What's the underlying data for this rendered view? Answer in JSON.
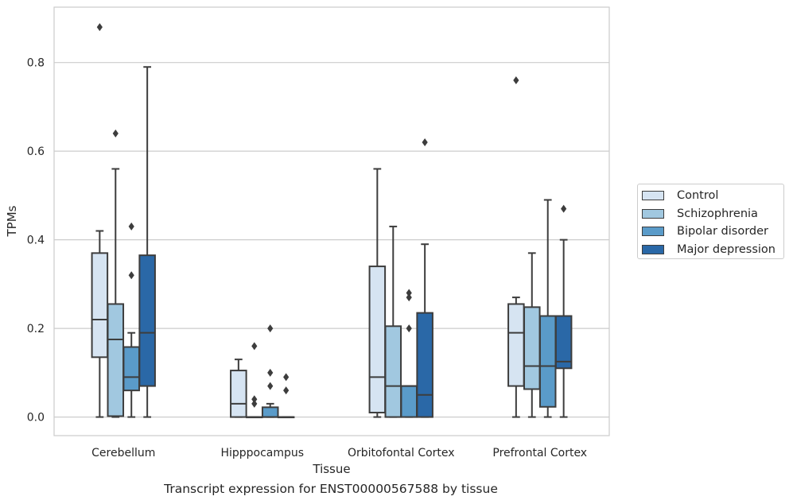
{
  "chart_data": {
    "type": "box",
    "xlabel": "Tissue",
    "ylabel": "TPMs",
    "caption": "Transcript expression for ENST00000567588 by tissue",
    "ylim": [
      -0.042,
      0.925
    ],
    "yticks": [
      "0.0",
      "0.2",
      "0.4",
      "0.6",
      "0.8"
    ],
    "ytick_values": [
      0.0,
      0.2,
      0.4,
      0.6,
      0.8
    ],
    "grid": "horizontal",
    "legend_position": "right",
    "categories": [
      "Cerebellum",
      "Hipppocampus",
      "Orbitofontal Cortex",
      "Prefrontal Cortex"
    ],
    "series": [
      {
        "name": "Control",
        "color": "#d6e4f2",
        "boxes": [
          {
            "whislo": 0.0,
            "q1": 0.135,
            "med": 0.22,
            "q3": 0.37,
            "whishi": 0.42,
            "fliers": [
              0.88
            ]
          },
          {
            "whislo": 0.0,
            "q1": 0.0,
            "med": 0.03,
            "q3": 0.105,
            "whishi": 0.13,
            "fliers": []
          },
          {
            "whislo": 0.0,
            "q1": 0.01,
            "med": 0.09,
            "q3": 0.34,
            "whishi": 0.56,
            "fliers": []
          },
          {
            "whislo": 0.0,
            "q1": 0.07,
            "med": 0.19,
            "q3": 0.255,
            "whishi": 0.27,
            "fliers": [
              0.76
            ]
          }
        ]
      },
      {
        "name": "Schizophrenia",
        "color": "#a1c8e0",
        "boxes": [
          {
            "whislo": 0.0,
            "q1": 0.002,
            "med": 0.175,
            "q3": 0.255,
            "whishi": 0.56,
            "fliers": [
              0.64
            ]
          },
          {
            "whislo": 0.0,
            "q1": 0.0,
            "med": 0.0,
            "q3": 0.0,
            "whishi": 0.0,
            "fliers": [
              0.16,
              0.04,
              0.03
            ]
          },
          {
            "whislo": 0.0,
            "q1": 0.0,
            "med": 0.07,
            "q3": 0.205,
            "whishi": 0.43,
            "fliers": []
          },
          {
            "whislo": 0.0,
            "q1": 0.063,
            "med": 0.115,
            "q3": 0.248,
            "whishi": 0.37,
            "fliers": []
          }
        ]
      },
      {
        "name": "Bipolar disorder",
        "color": "#5a9bc9",
        "boxes": [
          {
            "whislo": 0.0,
            "q1": 0.06,
            "med": 0.09,
            "q3": 0.158,
            "whishi": 0.19,
            "fliers": [
              0.43,
              0.32
            ]
          },
          {
            "whislo": 0.0,
            "q1": 0.0,
            "med": 0.0,
            "q3": 0.022,
            "whishi": 0.03,
            "fliers": [
              0.2,
              0.1,
              0.07
            ]
          },
          {
            "whislo": 0.0,
            "q1": 0.0,
            "med": 0.07,
            "q3": 0.07,
            "whishi": 0.07,
            "fliers": [
              0.28,
              0.27,
              0.2
            ]
          },
          {
            "whislo": 0.0,
            "q1": 0.023,
            "med": 0.115,
            "q3": 0.228,
            "whishi": 0.49,
            "fliers": []
          }
        ]
      },
      {
        "name": "Major depression",
        "color": "#2a68a7",
        "boxes": [
          {
            "whislo": 0.0,
            "q1": 0.07,
            "med": 0.19,
            "q3": 0.365,
            "whishi": 0.79,
            "fliers": []
          },
          {
            "whislo": 0.0,
            "q1": 0.0,
            "med": 0.0,
            "q3": 0.0,
            "whishi": 0.0,
            "fliers": [
              0.09,
              0.06
            ]
          },
          {
            "whislo": 0.0,
            "q1": 0.0,
            "med": 0.05,
            "q3": 0.235,
            "whishi": 0.39,
            "fliers": [
              0.62
            ]
          },
          {
            "whislo": 0.0,
            "q1": 0.11,
            "med": 0.125,
            "q3": 0.228,
            "whishi": 0.4,
            "fliers": [
              0.47
            ]
          }
        ]
      }
    ]
  }
}
